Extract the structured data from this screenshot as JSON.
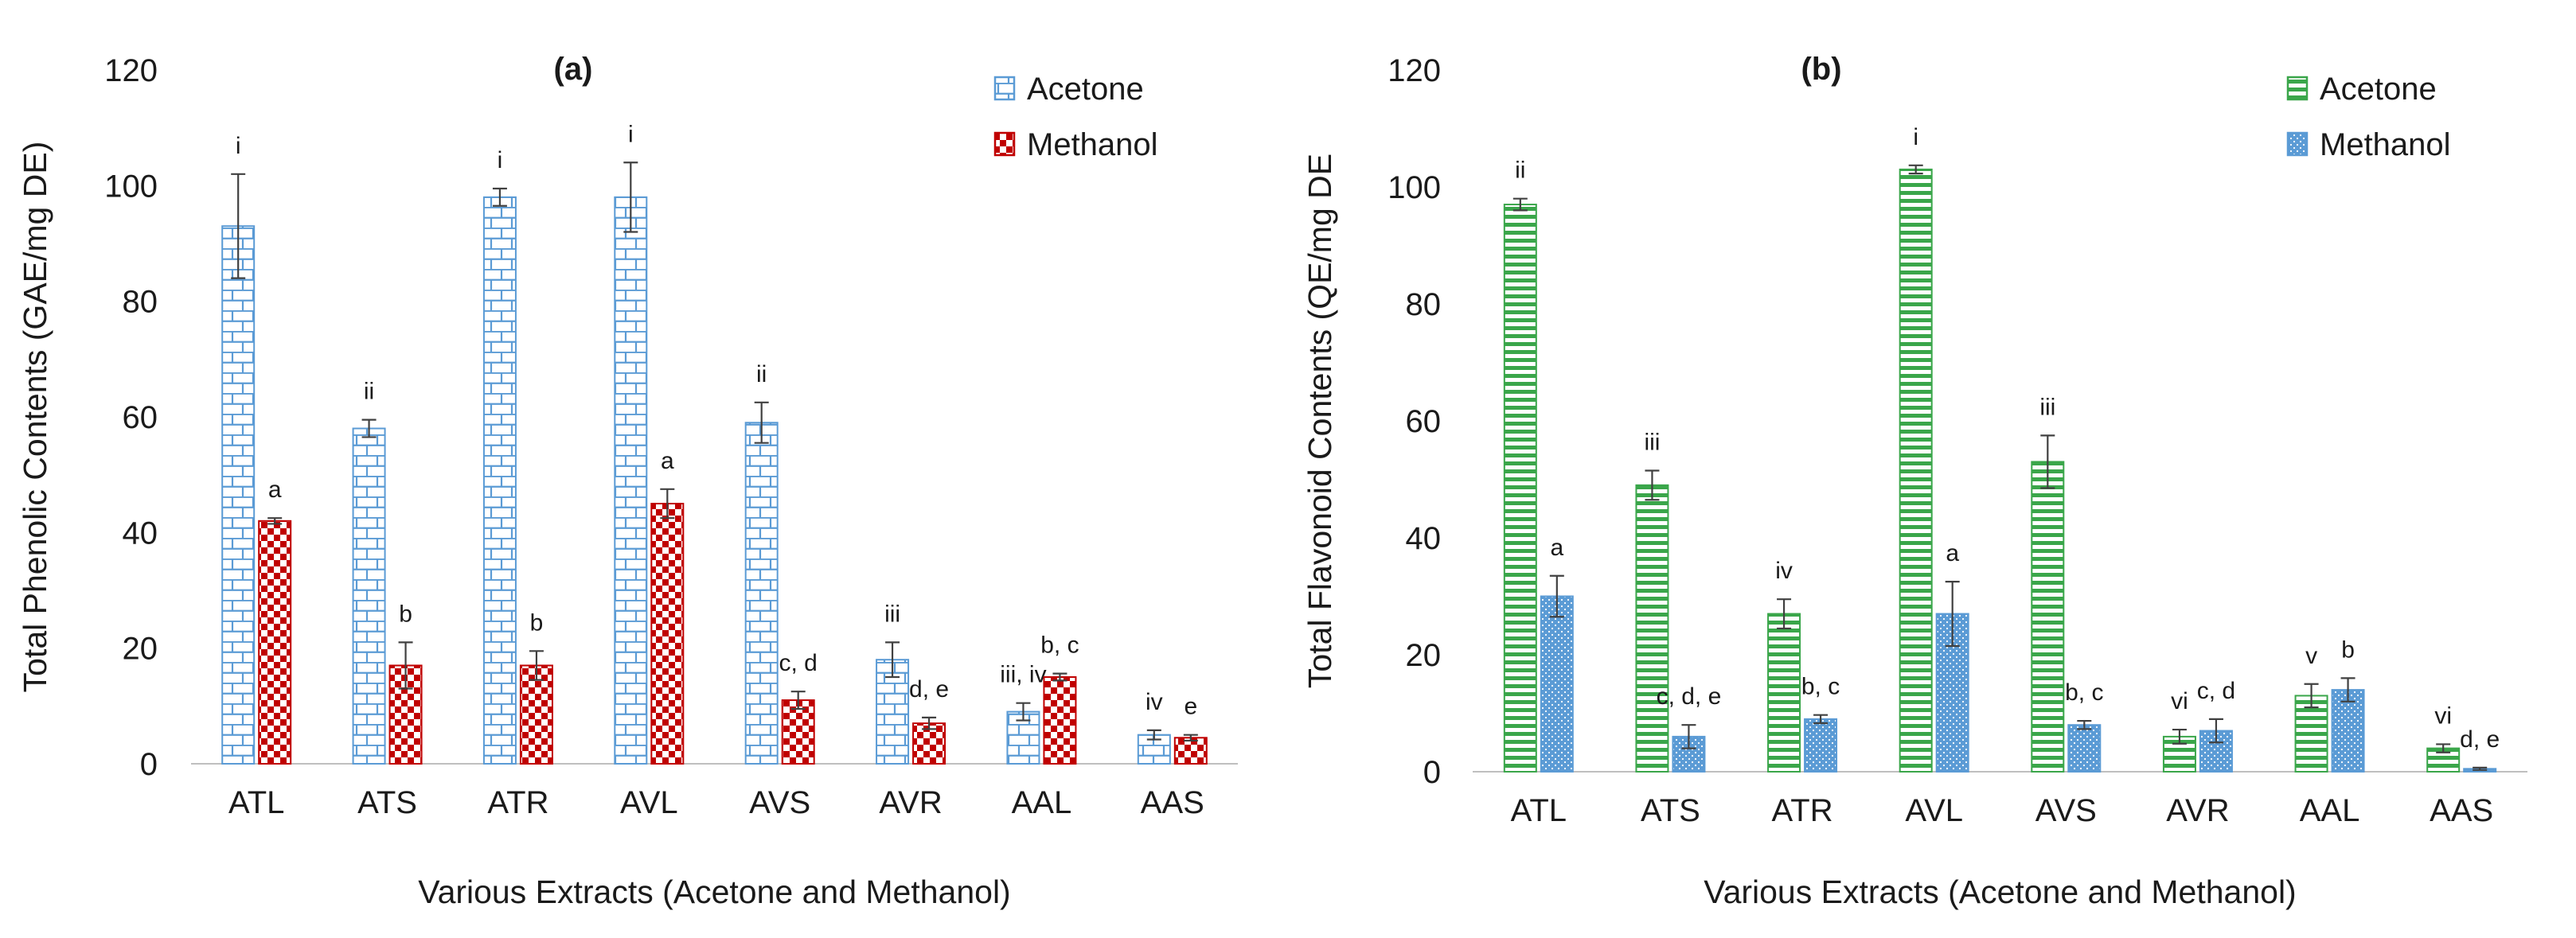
{
  "colors": {
    "acetone_a_fill": "#ffffff",
    "acetone_a_line": "#5b9bd5",
    "methanol_a_base": "#c00000",
    "acetone_b_line": "#3aa64a",
    "methanol_b_base": "#5b9bd5",
    "axis": "#bfbfbf",
    "errorbar": "#404040"
  },
  "chart_data": [
    {
      "type": "bar",
      "panel_label": "(a)",
      "ylabel": "Total Phenolic Contents (GAE/mg DE)",
      "xlabel": "Various Extracts (Acetone and Methanol)",
      "ylim": [
        0,
        120
      ],
      "yticks": [
        0,
        20,
        40,
        60,
        80,
        100,
        120
      ],
      "ytick_labels": [
        "0",
        "20",
        "40",
        "60",
        "80",
        "100",
        "120"
      ],
      "legend_position": "top-right",
      "categories": [
        "ATL",
        "ATS",
        "ATR",
        "AVL",
        "AVS",
        "AVR",
        "AAL",
        "AAS"
      ],
      "series": [
        {
          "name": "Acetone",
          "pattern": "brick",
          "values": [
            93,
            58,
            98,
            98,
            59,
            18,
            9,
            5
          ],
          "errors": [
            9,
            1.5,
            1.5,
            6,
            3.5,
            3,
            1.5,
            0.8
          ],
          "labels": [
            "i",
            "ii",
            "i",
            "i",
            "ii",
            "iii",
            "iii, iv",
            "iv"
          ]
        },
        {
          "name": "Methanol",
          "pattern": "checker",
          "values": [
            42,
            17,
            17,
            45,
            11,
            7,
            15,
            4.5
          ],
          "errors": [
            0.5,
            4,
            2.5,
            2.5,
            1.5,
            1,
            0.6,
            0.5
          ],
          "labels": [
            "a",
            "b",
            "b",
            "a",
            "c, d",
            "d, e",
            "b, c",
            "e"
          ]
        }
      ]
    },
    {
      "type": "bar",
      "panel_label": "(b)",
      "ylabel": "Total Flavonoid Contents (QE/mg DE",
      "xlabel": "Various Extracts (Acetone and Methanol)",
      "ylim": [
        0,
        120
      ],
      "yticks": [
        0,
        20,
        40,
        60,
        80,
        100,
        120
      ],
      "ytick_labels": [
        "0",
        "20",
        "40",
        "60",
        "80",
        "100",
        "120"
      ],
      "legend_position": "top-right",
      "categories": [
        "ATL",
        "ATS",
        "ATR",
        "AVL",
        "AVS",
        "AVR",
        "AAL",
        "AAS"
      ],
      "series": [
        {
          "name": "Acetone",
          "pattern": "hstripe",
          "values": [
            97,
            49,
            27,
            103,
            53,
            6,
            13,
            4
          ],
          "errors": [
            1,
            2.5,
            2.5,
            0.7,
            4.5,
            1.2,
            2,
            0.7
          ],
          "labels": [
            "ii",
            "iii",
            "iv",
            "i",
            "iii",
            "vi",
            "v",
            "vi"
          ]
        },
        {
          "name": "Methanol",
          "pattern": "dots",
          "values": [
            30,
            6,
            9,
            27,
            8,
            7,
            14,
            0.5
          ],
          "errors": [
            3.5,
            2,
            0.7,
            5.5,
            0.7,
            2,
            2,
            0.2
          ],
          "labels": [
            "a",
            "c, d, e",
            "b, c",
            "a",
            "b, c",
            "c, d",
            "b",
            "d, e"
          ]
        }
      ]
    }
  ]
}
